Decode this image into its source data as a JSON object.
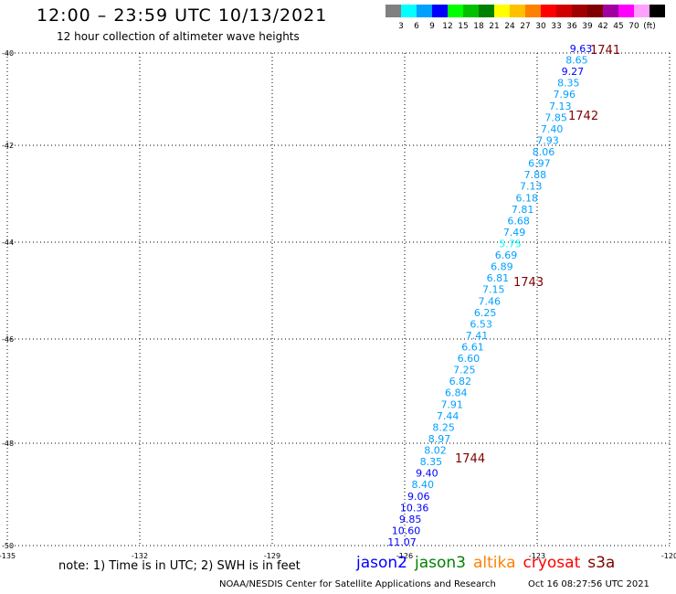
{
  "header": {
    "title": "12:00 – 23:59 UTC 10/13/2021",
    "subtitle": "12 hour collection of altimeter wave heights"
  },
  "color_scale": {
    "colors": [
      "#808080",
      "#00ffff",
      "#00a0ff",
      "#0000ff",
      "#00ff00",
      "#00c000",
      "#008000",
      "#ffff00",
      "#ffc000",
      "#ff8000",
      "#ff0000",
      "#d00000",
      "#a00000",
      "#800000",
      "#a000a0",
      "#ff00ff",
      "#ffa0ff",
      "#000000"
    ],
    "labels": [
      "3",
      "6",
      "9",
      "12",
      "15",
      "18",
      "21",
      "24",
      "27",
      "30",
      "33",
      "36",
      "39",
      "42",
      "45",
      "70"
    ],
    "unit": "(ft)"
  },
  "map": {
    "lat_ticks": [
      "-40",
      "-42",
      "-44",
      "-46",
      "-48",
      "-50"
    ],
    "lon_ticks": [
      "-135",
      "-132",
      "-129",
      "-126",
      "-123",
      "-120"
    ]
  },
  "chart_data": {
    "type": "scatter",
    "title": "12:00 – 23:59 UTC 10/13/2021",
    "subtitle": "12 hour collection of altimeter wave heights",
    "unit": "ft",
    "series": [
      {
        "name": "altimeter wave heights",
        "values": [
          "9.63",
          "8.65",
          "9.27",
          "8.35",
          "7.96",
          "7.13",
          "7.85",
          "7.40",
          "7.93",
          "8.06",
          "6.97",
          "7.88",
          "7.13",
          "6.18",
          "7.81",
          "6.68",
          "7.49",
          "5.75",
          "6.69",
          "6.89",
          "6.81",
          "7.15",
          "7.46",
          "6.25",
          "6.53",
          "7.41",
          "6.61",
          "6.60",
          "7.25",
          "6.82",
          "6.84",
          "7.91",
          "7.44",
          "8.25",
          "8.97",
          "8.02",
          "8.35",
          "9.40",
          "8.40",
          "9.06",
          "10.36",
          "9.85",
          "10.60",
          "11.07"
        ],
        "colors": [
          "#0000ff",
          "#00a0ff",
          "#0000ff",
          "#00a0ff",
          "#00a0ff",
          "#00a0ff",
          "#00a0ff",
          "#00a0ff",
          "#00a0ff",
          "#00a0ff",
          "#00a0ff",
          "#00a0ff",
          "#00a0ff",
          "#00a0ff",
          "#00a0ff",
          "#00a0ff",
          "#00a0ff",
          "#00ffff",
          "#00a0ff",
          "#00a0ff",
          "#00a0ff",
          "#00a0ff",
          "#00a0ff",
          "#00a0ff",
          "#00a0ff",
          "#00a0ff",
          "#00a0ff",
          "#00a0ff",
          "#00a0ff",
          "#00a0ff",
          "#00a0ff",
          "#00a0ff",
          "#00a0ff",
          "#00a0ff",
          "#00a0ff",
          "#00a0ff",
          "#00a0ff",
          "#0000ff",
          "#00a0ff",
          "#0000ff",
          "#0000ff",
          "#0000ff",
          "#0000ff",
          "#0000ff"
        ]
      }
    ],
    "pass_labels": [
      "1741",
      "1742",
      "1743",
      "1744"
    ]
  },
  "footer": {
    "note": "note:  1) Time is in UTC; 2) SWH is in feet",
    "satellites": [
      {
        "name": "jason2",
        "color": "#0000ff"
      },
      {
        "name": "jason3",
        "color": "#008000"
      },
      {
        "name": "altika",
        "color": "#ff8000"
      },
      {
        "name": "cryosat",
        "color": "#ff0000"
      },
      {
        "name": "s3a",
        "color": "#800000"
      }
    ],
    "credit": "NOAA/NESDIS Center for Satellite Applications and Research",
    "timestamp": "Oct 16 08:27:56 UTC 2021"
  }
}
